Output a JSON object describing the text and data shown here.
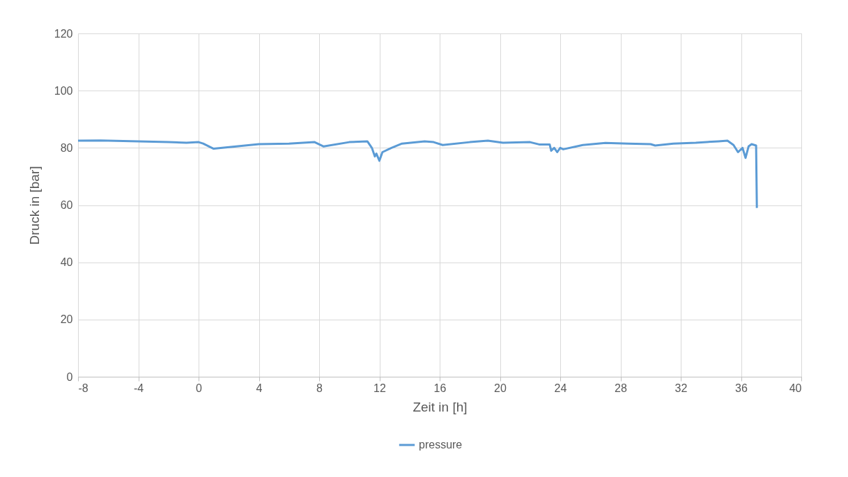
{
  "chart_data": {
    "type": "line",
    "xlabel": "Zeit in [h]",
    "ylabel": "Druck in [bar]",
    "xlim": [
      -8,
      40
    ],
    "xticks": [
      -8,
      -4,
      0,
      4,
      8,
      12,
      16,
      20,
      24,
      28,
      32,
      36,
      40
    ],
    "ylim": [
      0,
      120
    ],
    "yticks": [
      0,
      20,
      40,
      60,
      80,
      100,
      120
    ],
    "grid": true,
    "legend": "bottom",
    "series": [
      {
        "name": "pressure",
        "color": "#5b9bd5",
        "x": [
          -8,
          -6.5,
          -4,
          -2,
          -0.8,
          0,
          0.3,
          1,
          4,
          6,
          7.7,
          8.3,
          10,
          11.2,
          11.5,
          11.7,
          11.8,
          12,
          12.2,
          12.8,
          13.5,
          15,
          15.6,
          16.2,
          18,
          19.2,
          20.2,
          22,
          22.6,
          23.3,
          23.4,
          23.6,
          23.8,
          24,
          24.2,
          25.5,
          27,
          28.5,
          30,
          30.3,
          31.5,
          33,
          34.5,
          35.1,
          35.5,
          35.8,
          36.1,
          36.3,
          36.5,
          36.7,
          37.0,
          37.05
        ],
        "values": [
          82.5,
          82.6,
          82.3,
          82,
          81.8,
          82,
          81.5,
          79.7,
          81.3,
          81.5,
          82,
          80.5,
          82,
          82.3,
          80,
          77,
          78,
          75.5,
          78.5,
          80,
          81.5,
          82.3,
          82,
          81,
          82,
          82.5,
          81.8,
          82,
          81.2,
          81.2,
          79,
          80,
          78.5,
          80,
          79.5,
          81,
          81.7,
          81.5,
          81.3,
          80.8,
          81.5,
          81.8,
          82.3,
          82.5,
          81,
          78.5,
          80,
          76.5,
          80.5,
          81.3,
          80.8,
          59
        ]
      }
    ]
  }
}
